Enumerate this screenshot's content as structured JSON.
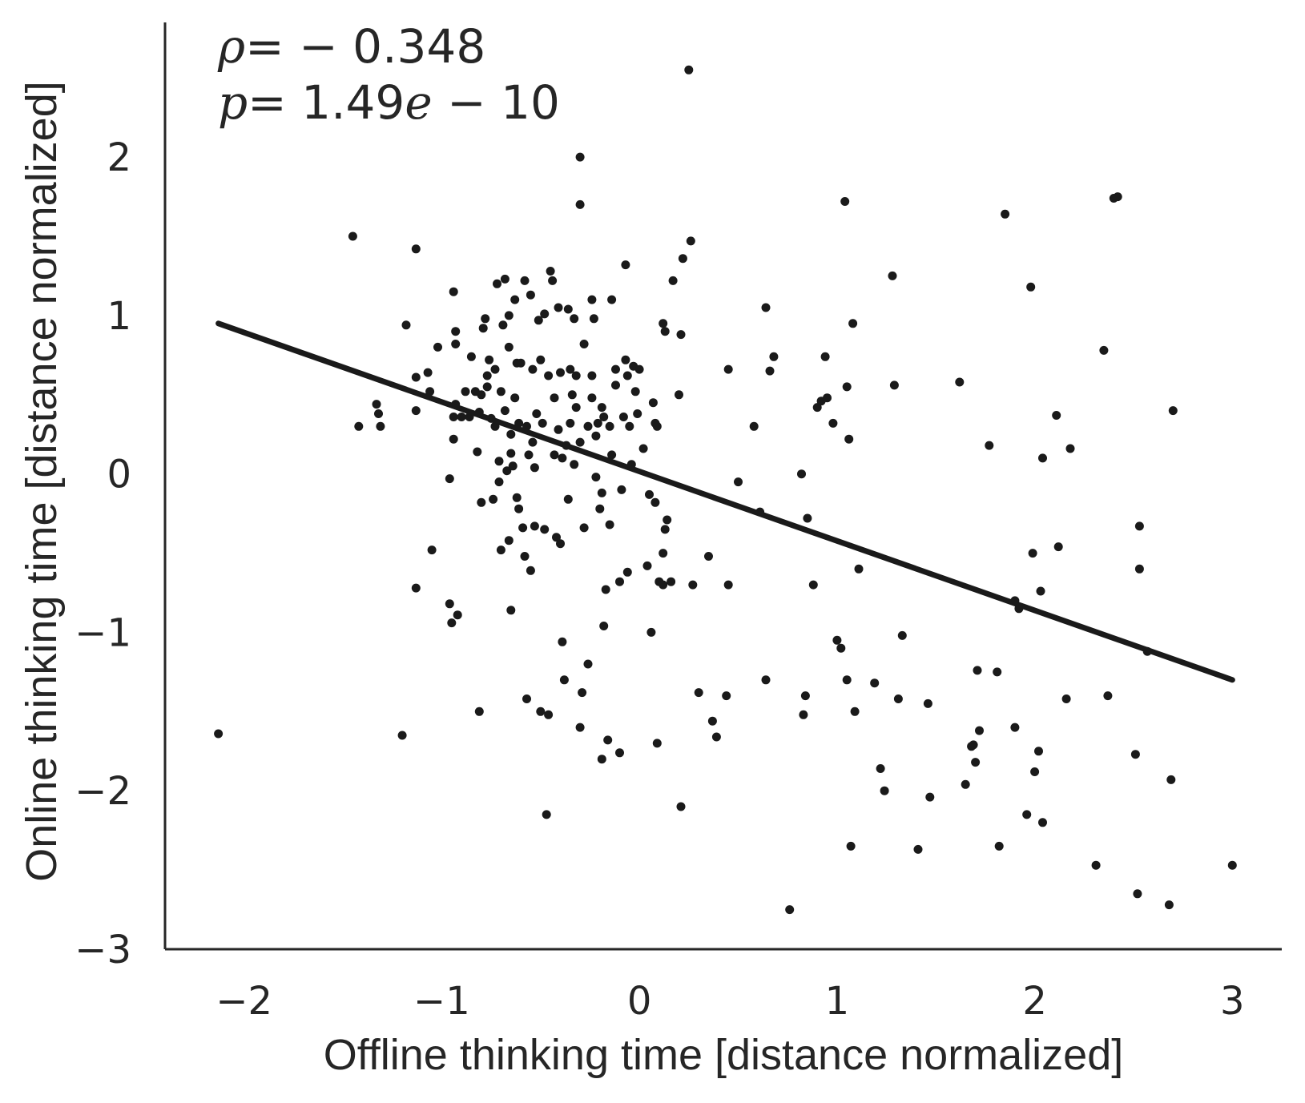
{
  "chart_data": {
    "type": "scatter",
    "xlabel": "Offline thinking time [distance normalized]",
    "ylabel": "Online thinking time [distance normalized]",
    "xlim": [
      -2.4,
      3.25
    ],
    "ylim": [
      -3.0,
      2.85
    ],
    "x_ticks": [
      -2,
      -1,
      0,
      1,
      2,
      3
    ],
    "y_ticks": [
      -3,
      -2,
      -1,
      0,
      1,
      2
    ],
    "x_tick_labels": [
      "−2",
      "−1",
      "0",
      "1",
      "2",
      "3"
    ],
    "y_tick_labels": [
      "−3",
      "−2",
      "−1",
      "0",
      "1",
      "2"
    ],
    "grid": false,
    "annotations": {
      "rho_label": "ρ",
      "rho_value": "= − 0.348",
      "p_label": "p",
      "p_value": "= 1.49",
      "p_exp_var": "e",
      "p_exp_rest": " − 10"
    },
    "regression_line": {
      "x": [
        -2.13,
        3.0
      ],
      "y": [
        0.95,
        -1.3
      ]
    },
    "points": [
      [
        -2.13,
        -1.64
      ],
      [
        -1.45,
        1.5
      ],
      [
        -1.42,
        0.3
      ],
      [
        -1.33,
        0.44
      ],
      [
        -1.32,
        0.38
      ],
      [
        -1.31,
        0.3
      ],
      [
        -1.2,
        -1.65
      ],
      [
        -1.18,
        0.94
      ],
      [
        -1.13,
        1.42
      ],
      [
        -1.13,
        0.61
      ],
      [
        -1.13,
        0.4
      ],
      [
        -1.13,
        -0.72
      ],
      [
        -1.07,
        0.64
      ],
      [
        -1.06,
        0.52
      ],
      [
        -1.05,
        -0.48
      ],
      [
        -1.02,
        0.8
      ],
      [
        -0.96,
        -0.82
      ],
      [
        -0.95,
        -0.94
      ],
      [
        -0.92,
        -0.89
      ],
      [
        -0.96,
        -0.03
      ],
      [
        -0.94,
        0.36
      ],
      [
        -0.94,
        0.22
      ],
      [
        -0.93,
        0.44
      ],
      [
        -0.94,
        1.15
      ],
      [
        -0.93,
        0.9
      ],
      [
        -0.93,
        0.82
      ],
      [
        -0.9,
        0.36
      ],
      [
        -0.88,
        0.52
      ],
      [
        -0.86,
        0.36
      ],
      [
        -0.85,
        0.74
      ],
      [
        -0.83,
        0.52
      ],
      [
        -0.82,
        0.14
      ],
      [
        -0.81,
        0.39
      ],
      [
        -0.81,
        -1.5
      ],
      [
        -0.8,
        -0.18
      ],
      [
        -0.8,
        0.5
      ],
      [
        -0.79,
        0.92
      ],
      [
        -0.78,
        0.98
      ],
      [
        -0.77,
        0.55
      ],
      [
        -0.77,
        0.62
      ],
      [
        -0.76,
        0.72
      ],
      [
        -0.75,
        0.35
      ],
      [
        -0.74,
        -0.16
      ],
      [
        -0.73,
        0.3
      ],
      [
        -0.73,
        0.66
      ],
      [
        -0.72,
        1.2
      ],
      [
        -0.71,
        -0.05
      ],
      [
        -0.71,
        0.08
      ],
      [
        -0.7,
        -0.48
      ],
      [
        -0.7,
        0.52
      ],
      [
        -0.69,
        0.94
      ],
      [
        -0.68,
        1.23
      ],
      [
        -0.68,
        0.4
      ],
      [
        -0.67,
        0.02
      ],
      [
        -0.66,
        0.8
      ],
      [
        -0.66,
        -0.42
      ],
      [
        -0.66,
        1.0
      ],
      [
        -0.65,
        0.25
      ],
      [
        -0.65,
        0.13
      ],
      [
        -0.65,
        -0.86
      ],
      [
        -0.64,
        0.05
      ],
      [
        -0.63,
        1.1
      ],
      [
        -0.63,
        0.48
      ],
      [
        -0.62,
        0.7
      ],
      [
        -0.62,
        -0.15
      ],
      [
        -0.61,
        0.32
      ],
      [
        -0.61,
        -0.22
      ],
      [
        -0.6,
        0.7
      ],
      [
        -0.59,
        -0.34
      ],
      [
        -0.58,
        -0.52
      ],
      [
        -0.58,
        1.22
      ],
      [
        -0.57,
        0.3
      ],
      [
        -0.57,
        -1.42
      ],
      [
        -0.56,
        0.12
      ],
      [
        -0.55,
        1.13
      ],
      [
        -0.55,
        -0.61
      ],
      [
        -0.54,
        0.66
      ],
      [
        -0.54,
        0.2
      ],
      [
        -0.53,
        0.04
      ],
      [
        -0.53,
        -0.33
      ],
      [
        -0.52,
        0.38
      ],
      [
        -0.51,
        0.97
      ],
      [
        -0.5,
        -1.5
      ],
      [
        -0.5,
        0.72
      ],
      [
        -0.49,
        0.32
      ],
      [
        -0.48,
        -0.35
      ],
      [
        -0.48,
        1.01
      ],
      [
        -0.47,
        -2.15
      ],
      [
        -0.46,
        -1.52
      ],
      [
        -0.46,
        0.62
      ],
      [
        -0.45,
        1.28
      ],
      [
        -0.44,
        1.22
      ],
      [
        -0.43,
        0.48
      ],
      [
        -0.43,
        0.12
      ],
      [
        -0.42,
        -0.4
      ],
      [
        -0.41,
        1.05
      ],
      [
        -0.41,
        0.28
      ],
      [
        -0.4,
        0.64
      ],
      [
        -0.4,
        -0.44
      ],
      [
        -0.39,
        0.1
      ],
      [
        -0.39,
        -1.06
      ],
      [
        -0.38,
        -1.3
      ],
      [
        -0.37,
        0.18
      ],
      [
        -0.36,
        -0.16
      ],
      [
        -0.36,
        1.04
      ],
      [
        -0.35,
        0.66
      ],
      [
        -0.35,
        0.32
      ],
      [
        -0.34,
        0.5
      ],
      [
        -0.33,
        0.98
      ],
      [
        -0.33,
        0.06
      ],
      [
        -0.32,
        0.62
      ],
      [
        -0.32,
        0.42
      ],
      [
        -0.3,
        -1.6
      ],
      [
        -0.3,
        0.2
      ],
      [
        -0.3,
        1.7
      ],
      [
        -0.3,
        2.0
      ],
      [
        -0.29,
        -1.38
      ],
      [
        -0.28,
        -0.34
      ],
      [
        -0.28,
        0.82
      ],
      [
        -0.26,
        0.3
      ],
      [
        -0.26,
        -1.2
      ],
      [
        -0.24,
        0.62
      ],
      [
        -0.24,
        0.48
      ],
      [
        -0.24,
        1.1
      ],
      [
        -0.23,
        0.98
      ],
      [
        -0.22,
        -0.02
      ],
      [
        -0.22,
        0.24
      ],
      [
        -0.21,
        0.32
      ],
      [
        -0.2,
        -0.22
      ],
      [
        -0.19,
        -0.12
      ],
      [
        -0.19,
        -1.8
      ],
      [
        -0.19,
        0.42
      ],
      [
        -0.18,
        0.36
      ],
      [
        -0.18,
        -0.96
      ],
      [
        -0.17,
        -0.73
      ],
      [
        -0.16,
        -1.68
      ],
      [
        -0.15,
        0.3
      ],
      [
        -0.15,
        -0.32
      ],
      [
        -0.14,
        0.12
      ],
      [
        -0.14,
        1.1
      ],
      [
        -0.12,
        0.56
      ],
      [
        -0.12,
        0.66
      ],
      [
        -0.1,
        -0.68
      ],
      [
        -0.1,
        -1.76
      ],
      [
        -0.09,
        -0.1
      ],
      [
        -0.08,
        0.36
      ],
      [
        -0.07,
        1.32
      ],
      [
        -0.07,
        0.72
      ],
      [
        -0.06,
        -0.62
      ],
      [
        -0.06,
        0.62
      ],
      [
        -0.05,
        0.3
      ],
      [
        -0.04,
        0.06
      ],
      [
        -0.03,
        0.68
      ],
      [
        -0.02,
        0.52
      ],
      [
        -0.01,
        0.38
      ],
      [
        0.0,
        0.66
      ],
      [
        0.02,
        0.16
      ],
      [
        0.04,
        -0.58
      ],
      [
        0.05,
        -0.13
      ],
      [
        0.06,
        -1.0
      ],
      [
        0.07,
        0.45
      ],
      [
        0.08,
        0.32
      ],
      [
        0.08,
        -0.18
      ],
      [
        0.09,
        -1.7
      ],
      [
        0.09,
        0.3
      ],
      [
        0.1,
        -0.68
      ],
      [
        0.12,
        -0.5
      ],
      [
        0.12,
        -0.7
      ],
      [
        0.12,
        0.95
      ],
      [
        0.13,
        0.9
      ],
      [
        0.13,
        -0.35
      ],
      [
        0.14,
        -0.29
      ],
      [
        0.16,
        -0.68
      ],
      [
        0.17,
        1.22
      ],
      [
        0.2,
        0.5
      ],
      [
        0.21,
        0.88
      ],
      [
        0.21,
        -2.1
      ],
      [
        0.22,
        1.36
      ],
      [
        0.25,
        2.55
      ],
      [
        0.26,
        1.47
      ],
      [
        0.27,
        -0.7
      ],
      [
        0.3,
        -1.38
      ],
      [
        0.35,
        -0.52
      ],
      [
        0.37,
        -1.56
      ],
      [
        0.39,
        -1.66
      ],
      [
        0.44,
        -1.4
      ],
      [
        0.45,
        0.66
      ],
      [
        0.45,
        -0.7
      ],
      [
        0.5,
        -0.05
      ],
      [
        0.58,
        0.3
      ],
      [
        0.61,
        -0.24
      ],
      [
        0.64,
        -1.3
      ],
      [
        0.64,
        1.05
      ],
      [
        0.66,
        0.65
      ],
      [
        0.68,
        0.74
      ],
      [
        0.76,
        -2.75
      ],
      [
        0.82,
        0.0
      ],
      [
        0.83,
        -1.52
      ],
      [
        0.84,
        -1.4
      ],
      [
        0.85,
        -0.28
      ],
      [
        0.88,
        -0.7
      ],
      [
        0.9,
        0.42
      ],
      [
        0.92,
        0.46
      ],
      [
        0.94,
        0.74
      ],
      [
        0.95,
        0.48
      ],
      [
        0.98,
        0.32
      ],
      [
        1.0,
        -1.05
      ],
      [
        1.02,
        -1.1
      ],
      [
        1.04,
        1.72
      ],
      [
        1.05,
        0.55
      ],
      [
        1.05,
        -1.3
      ],
      [
        1.06,
        0.22
      ],
      [
        1.07,
        -2.35
      ],
      [
        1.08,
        0.95
      ],
      [
        1.09,
        -1.5
      ],
      [
        1.11,
        -0.6
      ],
      [
        1.19,
        -1.32
      ],
      [
        1.22,
        -1.86
      ],
      [
        1.24,
        -2.0
      ],
      [
        1.28,
        1.25
      ],
      [
        1.29,
        0.56
      ],
      [
        1.31,
        -1.42
      ],
      [
        1.33,
        -1.02
      ],
      [
        1.41,
        -2.37
      ],
      [
        1.46,
        -1.45
      ],
      [
        1.47,
        -2.04
      ],
      [
        1.62,
        0.58
      ],
      [
        1.65,
        -1.96
      ],
      [
        1.68,
        -1.72
      ],
      [
        1.69,
        -1.71
      ],
      [
        1.7,
        -1.82
      ],
      [
        1.71,
        -1.24
      ],
      [
        1.72,
        -1.62
      ],
      [
        1.77,
        0.18
      ],
      [
        1.81,
        -1.25
      ],
      [
        1.82,
        -2.35
      ],
      [
        1.85,
        1.64
      ],
      [
        1.9,
        -0.8
      ],
      [
        1.9,
        -1.6
      ],
      [
        1.92,
        -0.85
      ],
      [
        1.96,
        -2.15
      ],
      [
        1.98,
        1.18
      ],
      [
        1.99,
        -0.5
      ],
      [
        2.0,
        -1.88
      ],
      [
        2.02,
        -1.75
      ],
      [
        2.03,
        -0.74
      ],
      [
        2.04,
        0.1
      ],
      [
        2.04,
        -2.2
      ],
      [
        2.11,
        0.37
      ],
      [
        2.12,
        -0.46
      ],
      [
        2.16,
        -1.42
      ],
      [
        2.18,
        0.16
      ],
      [
        2.31,
        -2.47
      ],
      [
        2.35,
        0.78
      ],
      [
        2.37,
        -1.4
      ],
      [
        2.4,
        1.74
      ],
      [
        2.42,
        1.75
      ],
      [
        2.51,
        -1.77
      ],
      [
        2.52,
        -2.65
      ],
      [
        2.53,
        -0.33
      ],
      [
        2.53,
        -0.6
      ],
      [
        2.57,
        -1.12
      ],
      [
        2.68,
        -2.72
      ],
      [
        2.69,
        -1.93
      ],
      [
        2.7,
        0.4
      ],
      [
        3.0,
        -2.47
      ]
    ]
  }
}
